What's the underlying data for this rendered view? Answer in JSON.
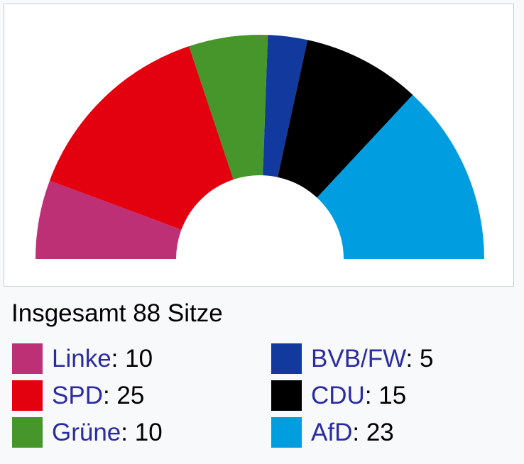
{
  "page": {
    "background_color": "#f8f9fa"
  },
  "chart_box": {
    "background_color": "#ffffff",
    "border_color": "#c8ccd1"
  },
  "chart_data": {
    "type": "pie",
    "variant": "semicircle-donut-hemicycle",
    "title": "Insgesamt 88 Sitze",
    "total_seats": 88,
    "start_angle_deg": 180,
    "end_angle_deg": 0,
    "inner_radius_ratio": 0.373,
    "legend_position": "below",
    "series": [
      {
        "name": "Linke",
        "value": 10,
        "color": "#be3075"
      },
      {
        "name": "SPD",
        "value": 25,
        "color": "#e3000f"
      },
      {
        "name": "Grüne",
        "value": 10,
        "color": "#46962b"
      },
      {
        "name": "BVB/FW",
        "value": 5,
        "color": "#12399e"
      },
      {
        "name": "CDU",
        "value": 15,
        "color": "#000000"
      },
      {
        "name": "AfD",
        "value": 23,
        "color": "#009ee0"
      }
    ]
  },
  "legend": {
    "separator": ": ",
    "link_color": "#2b2ba3",
    "value_color": "#000000",
    "columns_split": 3
  }
}
